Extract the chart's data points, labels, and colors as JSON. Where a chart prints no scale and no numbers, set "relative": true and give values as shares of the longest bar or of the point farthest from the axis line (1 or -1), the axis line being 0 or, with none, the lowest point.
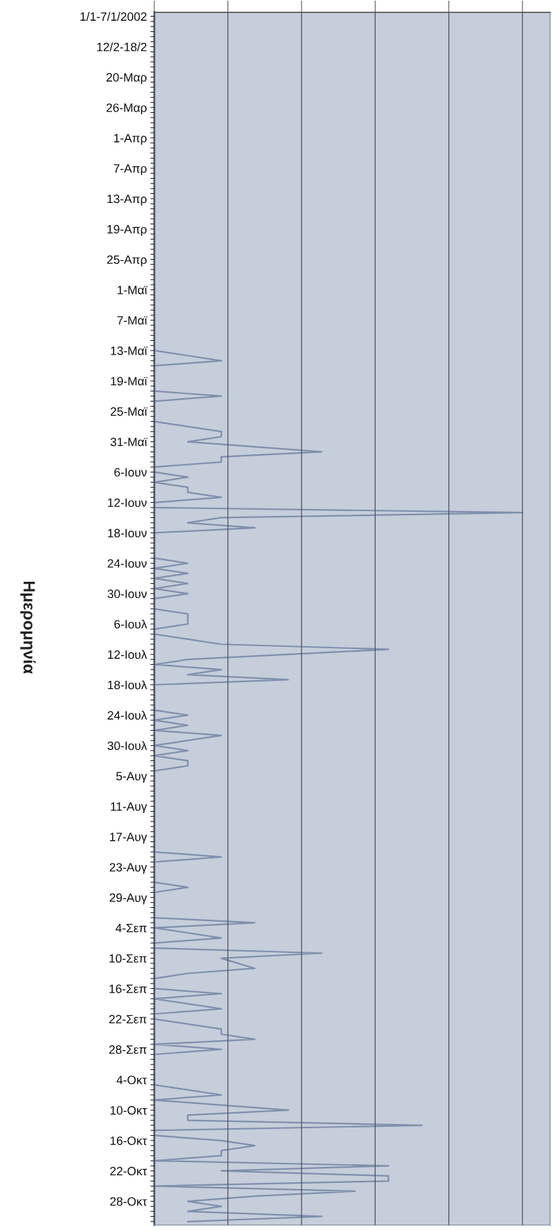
{
  "chart_data": {
    "type": "line",
    "orientation": "horizontal",
    "relative": true,
    "ylabel": "Ημερομηνία",
    "color": "#7f8fab",
    "grid": "x",
    "tick_labels": "y",
    "categories": [
      "1/1-7/1/2002",
      null,
      null,
      null,
      null,
      null,
      "12/2-18/2",
      null,
      null,
      null,
      null,
      null,
      "20-Μαρ",
      null,
      null,
      null,
      null,
      null,
      "26-Μαρ",
      null,
      null,
      null,
      null,
      null,
      "1-Απρ",
      null,
      null,
      null,
      null,
      null,
      "7-Απρ",
      null,
      null,
      null,
      null,
      null,
      "13-Απρ",
      null,
      null,
      null,
      null,
      null,
      "19-Απρ",
      null,
      null,
      null,
      null,
      null,
      "25-Απρ",
      null,
      null,
      null,
      null,
      null,
      "1-Μαϊ",
      null,
      null,
      null,
      null,
      null,
      "7-Μαϊ",
      null,
      null,
      null,
      null,
      null,
      "13-Μαϊ",
      null,
      null,
      null,
      null,
      null,
      "19-Μαϊ",
      null,
      null,
      null,
      null,
      null,
      "25-Μαϊ",
      null,
      null,
      null,
      null,
      null,
      "31-Μαϊ",
      null,
      null,
      null,
      null,
      null,
      "6-Ιουν",
      null,
      null,
      null,
      null,
      null,
      "12-Ιουν",
      null,
      null,
      null,
      null,
      null,
      "18-Ιουν",
      null,
      null,
      null,
      null,
      null,
      "24-Ιουν",
      null,
      null,
      null,
      null,
      null,
      "30-Ιουν",
      null,
      null,
      null,
      null,
      null,
      "6-Ιουλ",
      null,
      null,
      null,
      null,
      null,
      "12-Ιουλ",
      null,
      null,
      null,
      null,
      null,
      "18-Ιουλ",
      null,
      null,
      null,
      null,
      null,
      "24-Ιουλ",
      null,
      null,
      null,
      null,
      null,
      "30-Ιουλ",
      null,
      null,
      null,
      null,
      null,
      "5-Αυγ",
      null,
      null,
      null,
      null,
      null,
      "11-Αυγ",
      null,
      null,
      null,
      null,
      null,
      "17-Αυγ",
      null,
      null,
      null,
      null,
      null,
      "23-Αυγ",
      null,
      null,
      null,
      null,
      null,
      "29-Αυγ",
      null,
      null,
      null,
      null,
      null,
      "4-Σεπ",
      null,
      null,
      null,
      null,
      null,
      "10-Σεπ",
      null,
      null,
      null,
      null,
      null,
      "16-Σεπ",
      null,
      null,
      null,
      null,
      null,
      "22-Σεπ",
      null,
      null,
      null,
      null,
      null,
      "28-Σεπ",
      null,
      null,
      null,
      null,
      null,
      "4-Οκτ",
      null,
      null,
      null,
      null,
      null,
      "10-Οκτ",
      null,
      null,
      null,
      null,
      null,
      "16-Οκτ",
      null,
      null,
      null,
      null,
      null,
      "22-Οκτ",
      null,
      null,
      null,
      null,
      null,
      "28-Οκτ",
      null,
      null,
      null,
      null
    ],
    "values": [
      0,
      0,
      0,
      0,
      0,
      0,
      0,
      0,
      0,
      0,
      0,
      0,
      0,
      0,
      0,
      0,
      0,
      0,
      0,
      0,
      0,
      0,
      0,
      0,
      0,
      0,
      0,
      0,
      0,
      0,
      0,
      0,
      0,
      0,
      0,
      0,
      0,
      0,
      0,
      0,
      0,
      0,
      0,
      0,
      0,
      0,
      0,
      0,
      0,
      0,
      0,
      0,
      0,
      0,
      0,
      0,
      0,
      0,
      0,
      0,
      0,
      0,
      0,
      0,
      0,
      0,
      0,
      0.091,
      0.182,
      0,
      0,
      0,
      0,
      0,
      0,
      0.182,
      0,
      0,
      0,
      0,
      0,
      0.091,
      0.182,
      0.182,
      0.091,
      0.273,
      0.455,
      0.182,
      0.182,
      0,
      0,
      0.091,
      0,
      0.091,
      0.091,
      0.182,
      0,
      0,
      1,
      0.182,
      0.091,
      0.273,
      0,
      0,
      0,
      0,
      0,
      0,
      0.091,
      0,
      0.091,
      0,
      0.091,
      0,
      0.091,
      0,
      0,
      0,
      0.091,
      0.091,
      0.091,
      0,
      0,
      0.091,
      0.182,
      0.636,
      0.364,
      0.091,
      0,
      0.182,
      0.091,
      0.364,
      0,
      0,
      0,
      0,
      0,
      0,
      0.091,
      0,
      0.091,
      0,
      0.182,
      0.091,
      0,
      0.091,
      0,
      0.091,
      0.091,
      0,
      0,
      0,
      0,
      0,
      0,
      0,
      0,
      0,
      0,
      0,
      0,
      0,
      0,
      0,
      0,
      0,
      0.182,
      0,
      0,
      0,
      0,
      0,
      0.091,
      0,
      0,
      0,
      0,
      0,
      0,
      0.273,
      0,
      0.091,
      0.182,
      0,
      0,
      0.455,
      0.182,
      0.227,
      0.273,
      0.091,
      0,
      0,
      0,
      0.182,
      0,
      0.091,
      0.182,
      0,
      0,
      0.091,
      0.182,
      0.182,
      0.273,
      0,
      0.182,
      0,
      0,
      0,
      0,
      0,
      0,
      0,
      0.091,
      0.182,
      0,
      0.182,
      0.364,
      0.091,
      0.091,
      0.727,
      0,
      0,
      0.182,
      0.273,
      0.182,
      0.182,
      0,
      0.636,
      0.182,
      0.636,
      0.636,
      0,
      0.545,
      0.273,
      0.091,
      0.182,
      0.091,
      0.455,
      0.091
    ]
  }
}
